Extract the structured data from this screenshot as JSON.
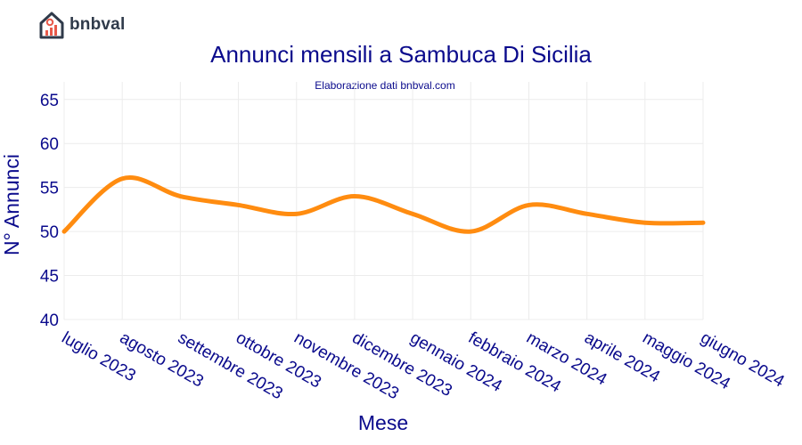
{
  "logo": {
    "text": "bnbval",
    "icon": "house-chart-icon"
  },
  "colors": {
    "series": "#ff8c10",
    "text": "#0a0a8c",
    "logo_dark": "#2f3a4a",
    "logo_accent": "#e8594a"
  },
  "chart_data": {
    "type": "line",
    "title": "Annunci mensili a Sambuca Di Sicilia",
    "subtitle": "Elaborazione dati bnbval.com",
    "xlabel": "Mese",
    "ylabel": "N° Annunci",
    "categories": [
      "luglio 2023",
      "agosto 2023",
      "settembre 2023",
      "ottobre 2023",
      "novembre 2023",
      "dicembre 2023",
      "gennaio 2024",
      "febbraio 2024",
      "marzo 2024",
      "aprile 2024",
      "maggio 2024",
      "giugno 2024"
    ],
    "series": [
      {
        "values": [
          50,
          56,
          54,
          53,
          52,
          54,
          52,
          50,
          53,
          52,
          51,
          51
        ]
      }
    ],
    "ylim": [
      40,
      67
    ],
    "yticks": [
      40,
      45,
      50,
      55,
      60,
      65
    ],
    "grid": true,
    "smooth": true,
    "legend": "none"
  }
}
